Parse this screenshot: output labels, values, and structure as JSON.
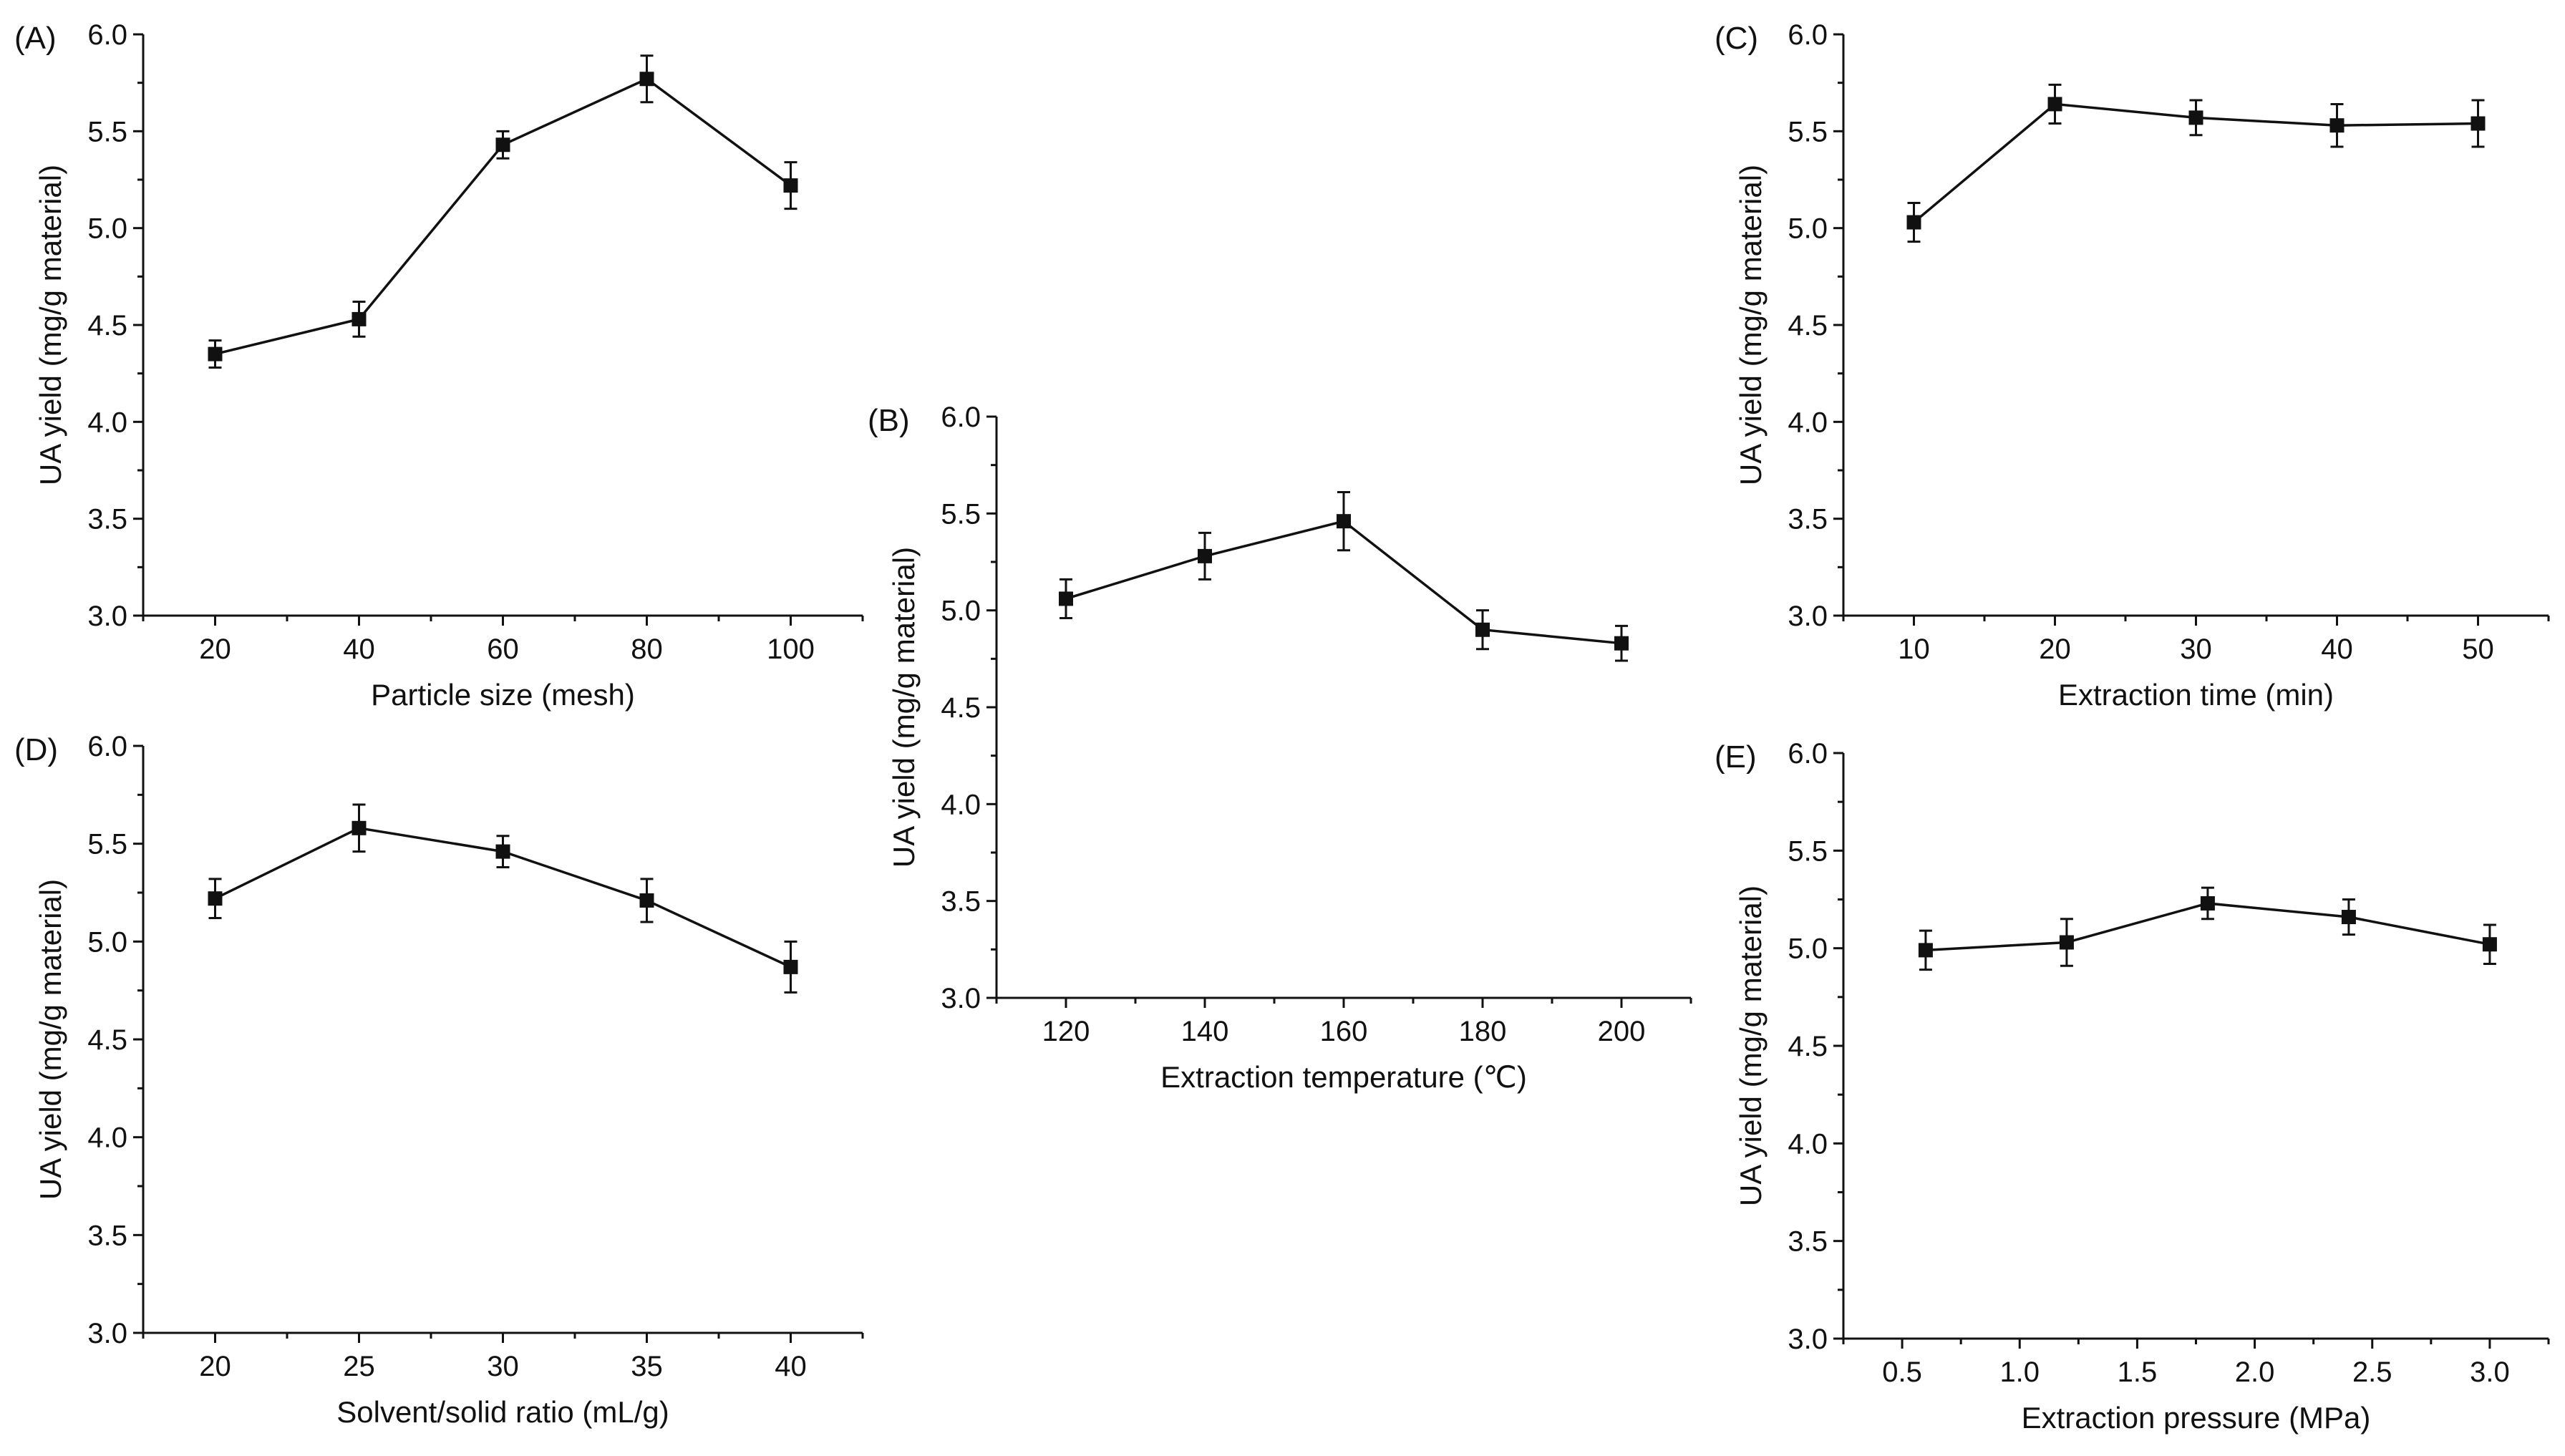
{
  "chart_data": [
    {
      "type": "line",
      "panel_label": "(A)",
      "xlabel": "Particle size (mesh)",
      "ylabel": "UA yield (mg/g material)",
      "x": [
        20,
        40,
        60,
        80,
        100
      ],
      "values": [
        4.35,
        4.53,
        5.43,
        5.77,
        5.22
      ],
      "errors": [
        0.07,
        0.09,
        0.07,
        0.12,
        0.12
      ],
      "xlim": [
        10,
        110
      ],
      "xticks": [
        20,
        40,
        60,
        80,
        100
      ],
      "xtick_labels": [
        "20",
        "40",
        "60",
        "80",
        "100"
      ],
      "ylim": [
        3.0,
        6.0
      ],
      "yticks": [
        3.0,
        3.5,
        4.0,
        4.5,
        5.0,
        5.5,
        6.0
      ],
      "ytick_labels": [
        "3.0",
        "3.5",
        "4.0",
        "4.5",
        "5.0",
        "5.5",
        "6.0"
      ]
    },
    {
      "type": "line",
      "panel_label": "(B)",
      "xlabel": "Extraction temperature (℃)",
      "ylabel": "UA yield (mg/g material)",
      "x": [
        120,
        140,
        160,
        180,
        200
      ],
      "values": [
        5.06,
        5.28,
        5.46,
        4.9,
        4.83
      ],
      "errors": [
        0.1,
        0.12,
        0.15,
        0.1,
        0.09
      ],
      "xlim": [
        110,
        210
      ],
      "xticks": [
        120,
        140,
        160,
        180,
        200
      ],
      "xtick_labels": [
        "120",
        "140",
        "160",
        "180",
        "200"
      ],
      "ylim": [
        3.0,
        6.0
      ],
      "yticks": [
        3.0,
        3.5,
        4.0,
        4.5,
        5.0,
        5.5,
        6.0
      ],
      "ytick_labels": [
        "3.0",
        "3.5",
        "4.0",
        "4.5",
        "5.0",
        "5.5",
        "6.0"
      ]
    },
    {
      "type": "line",
      "panel_label": "(C)",
      "xlabel": "Extraction time (min)",
      "ylabel": "UA yield (mg/g material)",
      "x": [
        10,
        20,
        30,
        40,
        50
      ],
      "values": [
        5.03,
        5.64,
        5.57,
        5.53,
        5.54
      ],
      "errors": [
        0.1,
        0.1,
        0.09,
        0.11,
        0.12
      ],
      "xlim": [
        5,
        55
      ],
      "xticks": [
        10,
        20,
        30,
        40,
        50
      ],
      "xtick_labels": [
        "10",
        "20",
        "30",
        "40",
        "50"
      ],
      "ylim": [
        3.0,
        6.0
      ],
      "yticks": [
        3.0,
        3.5,
        4.0,
        4.5,
        5.0,
        5.5,
        6.0
      ],
      "ytick_labels": [
        "3.0",
        "3.5",
        "4.0",
        "4.5",
        "5.0",
        "5.5",
        "6.0"
      ]
    },
    {
      "type": "line",
      "panel_label": "(D)",
      "xlabel": "Solvent/solid ratio (mL/g)",
      "ylabel": "UA yield (mg/g material)",
      "x": [
        20,
        25,
        30,
        35,
        40
      ],
      "values": [
        5.22,
        5.58,
        5.46,
        5.21,
        4.87
      ],
      "errors": [
        0.1,
        0.12,
        0.08,
        0.11,
        0.13
      ],
      "xlim": [
        17.5,
        42.5
      ],
      "xticks": [
        20,
        25,
        30,
        35,
        40
      ],
      "xtick_labels": [
        "20",
        "25",
        "30",
        "35",
        "40"
      ],
      "ylim": [
        3.0,
        6.0
      ],
      "yticks": [
        3.0,
        3.5,
        4.0,
        4.5,
        5.0,
        5.5,
        6.0
      ],
      "ytick_labels": [
        "3.0",
        "3.5",
        "4.0",
        "4.5",
        "5.0",
        "5.5",
        "6.0"
      ]
    },
    {
      "type": "line",
      "panel_label": "(E)",
      "xlabel": "Extraction pressure (MPa)",
      "ylabel": "UA yield (mg/g material)",
      "x": [
        0.6,
        1.2,
        1.8,
        2.4,
        3.0
      ],
      "values": [
        4.99,
        5.03,
        5.23,
        5.16,
        5.02
      ],
      "errors": [
        0.1,
        0.12,
        0.08,
        0.09,
        0.1
      ],
      "xlim": [
        0.25,
        3.25
      ],
      "xticks": [
        0.5,
        1.0,
        1.5,
        2.0,
        2.5,
        3.0
      ],
      "xtick_labels": [
        "0.5",
        "1.0",
        "1.5",
        "2.0",
        "2.5",
        "3.0"
      ],
      "ylim": [
        3.0,
        6.0
      ],
      "yticks": [
        3.0,
        3.5,
        4.0,
        4.5,
        5.0,
        5.5,
        6.0
      ],
      "ytick_labels": [
        "3.0",
        "3.5",
        "4.0",
        "4.5",
        "5.0",
        "5.5",
        "6.0"
      ]
    }
  ]
}
